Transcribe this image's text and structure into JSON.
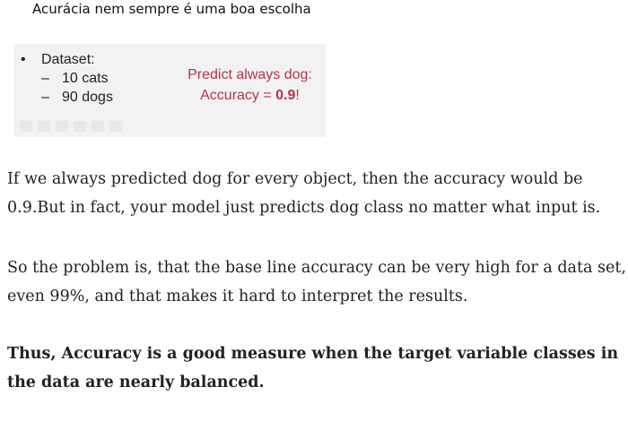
{
  "caption": "Acurácia nem sempre é uma boa escolha",
  "slide": {
    "bullet": "Dataset:",
    "sub_items": [
      "10 cats",
      "90 dogs"
    ],
    "predict_line1": "Predict always dog:",
    "predict_line2_prefix": "Accuracy = ",
    "predict_value": "0.9",
    "predict_suffix": "!",
    "accent_color": "#b5344a"
  },
  "paragraphs": [
    "If we always predicted dog for every object, then the accuracy would be 0.9.But in fact, your model just predicts dog class no matter what input is.",
    "So the problem is, that the base line accuracy can be very high for a data set, even 99%, and that makes it hard to interpret the results.",
    "Thus, Accuracy is a good measure when the target variable classes in the data are nearly balanced."
  ]
}
